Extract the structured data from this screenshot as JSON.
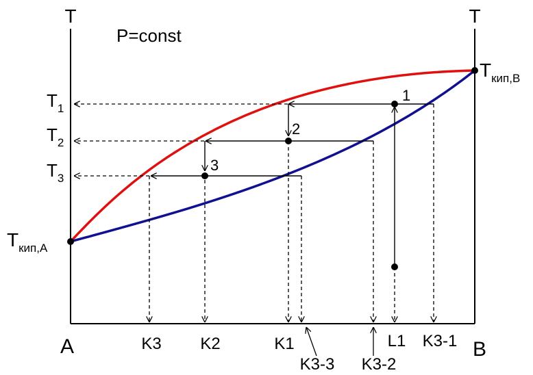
{
  "title": "P=const",
  "axes": {
    "left_label": "T",
    "right_label": "T",
    "bottom_left_label": "A",
    "bottom_right_label": "B"
  },
  "temperature_labels": {
    "t1": {
      "base": "T",
      "sub": "1"
    },
    "t2": {
      "base": "T",
      "sub": "2"
    },
    "t3": {
      "base": "T",
      "sub": "3"
    },
    "boil_a": {
      "base": "T",
      "sub": "кип,A"
    },
    "boil_b": {
      "base": "T",
      "sub": "кип,B"
    }
  },
  "step_numbers": [
    "1",
    "2",
    "3"
  ],
  "composition_labels": {
    "k3": "K3",
    "k2": "K2",
    "k1": "K1",
    "l1": "L1",
    "k3_1": "K3-1",
    "k3_2": "K3-2",
    "k3_3": "K3-3"
  },
  "colors": {
    "vapor_curve": "#e01010",
    "liquid_curve": "#101090",
    "lines": "#000000"
  }
}
